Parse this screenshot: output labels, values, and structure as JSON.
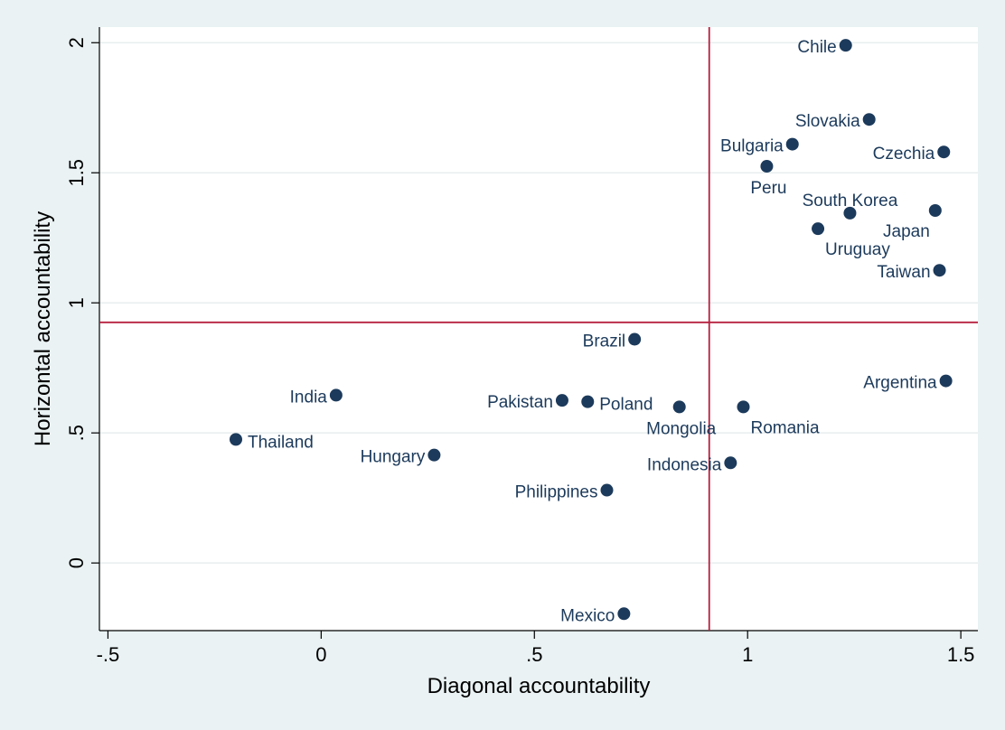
{
  "chart_data": {
    "type": "scatter",
    "xlabel": "Diagonal accountability",
    "ylabel": "Horizontal accountability",
    "xlim": [
      -0.52,
      1.54
    ],
    "ylim": [
      -0.26,
      2.06
    ],
    "x_ticks": [
      {
        "value": -0.5,
        "label": "-.5"
      },
      {
        "value": 0,
        "label": "0"
      },
      {
        "value": 0.5,
        "label": ".5"
      },
      {
        "value": 1,
        "label": "1"
      },
      {
        "value": 1.5,
        "label": "1.5"
      }
    ],
    "y_ticks": [
      {
        "value": 0,
        "label": "0"
      },
      {
        "value": 0.5,
        "label": ".5"
      },
      {
        "value": 1,
        "label": "1"
      },
      {
        "value": 1.5,
        "label": "1.5"
      },
      {
        "value": 2,
        "label": "2"
      }
    ],
    "grid": true,
    "reference_lines": {
      "x": 0.91,
      "y": 0.925,
      "color": "#b5203f"
    },
    "marker_color": "#1c3a5b",
    "points": [
      {
        "label": "Chile",
        "x": 1.23,
        "y": 1.99,
        "pos": "left"
      },
      {
        "label": "Slovakia",
        "x": 1.285,
        "y": 1.705,
        "pos": "left"
      },
      {
        "label": "Bulgaria",
        "x": 1.105,
        "y": 1.61,
        "pos": "left"
      },
      {
        "label": "Czechia",
        "x": 1.46,
        "y": 1.58,
        "pos": "left"
      },
      {
        "label": "Peru",
        "x": 1.045,
        "y": 1.525,
        "pos": "below"
      },
      {
        "label": "South Korea",
        "x": 1.24,
        "y": 1.345,
        "pos": "above"
      },
      {
        "label": "Japan",
        "x": 1.44,
        "y": 1.355,
        "pos": "below-left"
      },
      {
        "label": "Uruguay",
        "x": 1.165,
        "y": 1.285,
        "pos": "below-right"
      },
      {
        "label": "Taiwan",
        "x": 1.45,
        "y": 1.125,
        "pos": "left"
      },
      {
        "label": "Brazil",
        "x": 0.735,
        "y": 0.86,
        "pos": "left"
      },
      {
        "label": "Argentina",
        "x": 1.465,
        "y": 0.7,
        "pos": "left"
      },
      {
        "label": "India",
        "x": 0.035,
        "y": 0.645,
        "pos": "left"
      },
      {
        "label": "Pakistan",
        "x": 0.565,
        "y": 0.625,
        "pos": "left"
      },
      {
        "label": "Poland",
        "x": 0.625,
        "y": 0.62,
        "pos": "right"
      },
      {
        "label": "Mongolia",
        "x": 0.84,
        "y": 0.6,
        "pos": "below"
      },
      {
        "label": "Romania",
        "x": 0.99,
        "y": 0.6,
        "pos": "below-right"
      },
      {
        "label": "Thailand",
        "x": -0.2,
        "y": 0.475,
        "pos": "right"
      },
      {
        "label": "Hungary",
        "x": 0.265,
        "y": 0.415,
        "pos": "left"
      },
      {
        "label": "Indonesia",
        "x": 0.96,
        "y": 0.385,
        "pos": "left"
      },
      {
        "label": "Philippines",
        "x": 0.67,
        "y": 0.28,
        "pos": "left"
      },
      {
        "label": "Mexico",
        "x": 0.71,
        "y": -0.195,
        "pos": "left"
      }
    ]
  }
}
